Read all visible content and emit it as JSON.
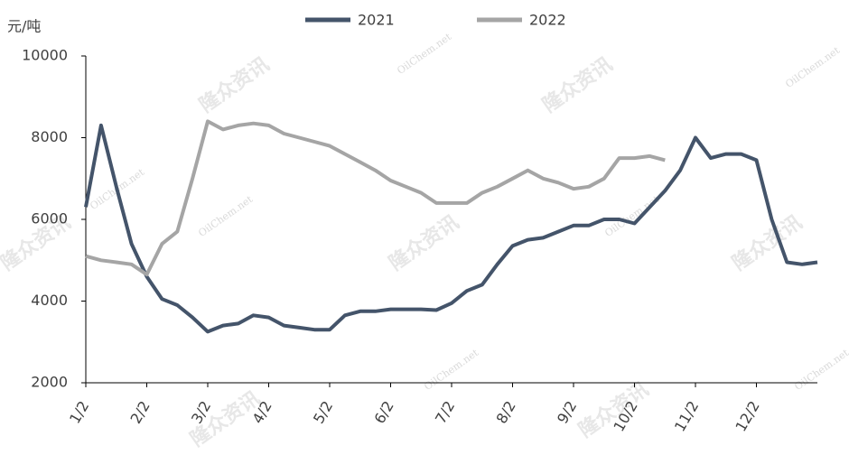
{
  "chart_data": {
    "type": "line",
    "y_label": "元/吨",
    "watermarks": [
      "隆众资讯",
      "OilChem.net"
    ],
    "categories": [
      "1/2",
      null,
      null,
      null,
      "2/2",
      null,
      null,
      null,
      "3/2",
      null,
      null,
      null,
      "4/2",
      null,
      null,
      null,
      "5/2",
      null,
      null,
      null,
      "6/2",
      null,
      null,
      null,
      "7/2",
      null,
      null,
      null,
      "8/2",
      null,
      null,
      null,
      "9/2",
      null,
      null,
      null,
      "10/2",
      null,
      null,
      null,
      "11/2",
      null,
      null,
      null,
      "12/2",
      null,
      null,
      null,
      null
    ],
    "series": [
      {
        "name": "2021",
        "color": "#44546a",
        "values": [
          6300,
          8300,
          6800,
          5400,
          4600,
          4050,
          3900,
          3600,
          3250,
          3400,
          3450,
          3650,
          3600,
          3400,
          3350,
          3300,
          3300,
          3650,
          3750,
          3750,
          3800,
          3800,
          3800,
          3780,
          3950,
          4250,
          4400,
          4900,
          5350,
          5500,
          5550,
          5700,
          5850,
          5850,
          6000,
          6000,
          5900,
          6300,
          6700,
          7200,
          8000,
          7500,
          7600,
          7600,
          7450,
          6000,
          4950,
          4900,
          4950
        ]
      },
      {
        "name": "2022",
        "color": "#a5a5a5",
        "values": [
          5100,
          5000,
          4950,
          4900,
          4650,
          5400,
          5700,
          7000,
          8400,
          8200,
          8300,
          8350,
          8300,
          8100,
          8000,
          7900,
          7800,
          7600,
          7400,
          7200,
          6950,
          6800,
          6650,
          6400,
          6400,
          6400,
          6650,
          6800,
          7000,
          7200,
          7000,
          6900,
          6750,
          6800,
          7000,
          7500,
          7500,
          7550,
          7450,
          null,
          null,
          null,
          null,
          null,
          null,
          null,
          null,
          null,
          null
        ]
      }
    ],
    "ylim": [
      2000,
      10000
    ],
    "yticks": [
      2000,
      4000,
      6000,
      8000,
      10000
    ]
  }
}
